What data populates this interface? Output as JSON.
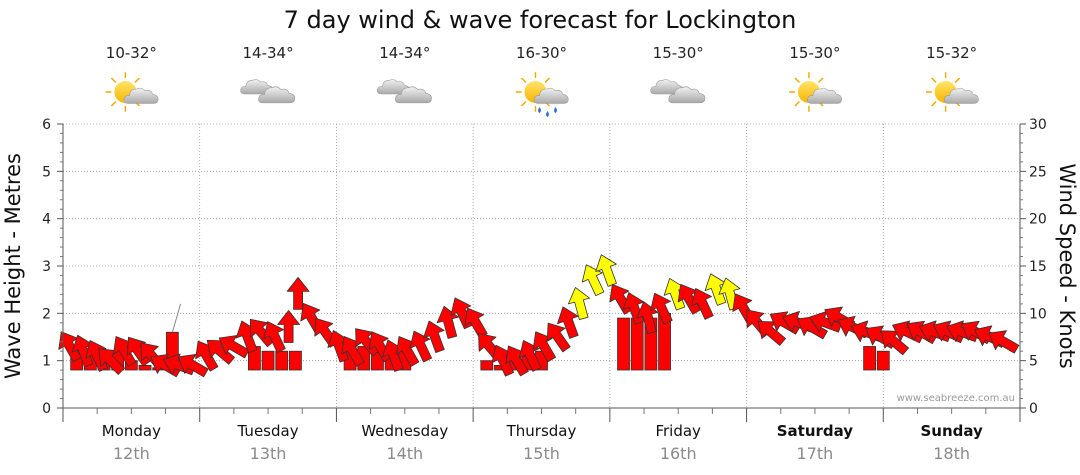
{
  "chart_data": {
    "type": "arrow-scatter",
    "title": "7 day wind & wave forecast for Lockington",
    "ylabel_left": "Wave Height - Metres",
    "ylabel_right": "Wind Speed - Knots",
    "ylim_left": [
      0,
      6
    ],
    "ylim_right": [
      0,
      30
    ],
    "yticks_left": [
      "0",
      "1",
      "2",
      "3",
      "4",
      "5",
      "6"
    ],
    "yticks_right": [
      "0",
      "5",
      "10",
      "15",
      "20",
      "25",
      "30"
    ],
    "watermark": "www.seabreeze.com.au",
    "colors": {
      "red": "#ff0000",
      "yellow": "#ffff00",
      "outline": "#333333",
      "grid": "#999999"
    },
    "days": [
      {
        "name": "Monday",
        "date": "12th",
        "temp": "10-32°",
        "icon": "partly-cloudy-icon",
        "bold": false
      },
      {
        "name": "Tuesday",
        "date": "13th",
        "temp": "14-34°",
        "icon": "cloudy-icon",
        "bold": false
      },
      {
        "name": "Wednesday",
        "date": "14th",
        "temp": "14-34°",
        "icon": "cloudy-icon",
        "bold": false
      },
      {
        "name": "Thursday",
        "date": "15th",
        "temp": "16-30°",
        "icon": "showers-icon",
        "bold": false
      },
      {
        "name": "Friday",
        "date": "16th",
        "temp": "15-30°",
        "icon": "cloudy-icon",
        "bold": false
      },
      {
        "name": "Saturday",
        "date": "17th",
        "temp": "15-30°",
        "icon": "partly-cloudy-icon",
        "bold": true
      },
      {
        "name": "Sunday",
        "date": "18th",
        "temp": "15-32°",
        "icon": "partly-cloudy-icon",
        "bold": true
      }
    ],
    "wind_series": {
      "name": "Wind (knots) & direction (arrow heading, degrees)",
      "points": [
        {
          "d": 0.05,
          "y": 6.5,
          "h": 330,
          "c": "red"
        },
        {
          "d": 0.15,
          "y": 6.0,
          "h": 340,
          "c": "red"
        },
        {
          "d": 0.25,
          "y": 5.5,
          "h": 335,
          "c": "red"
        },
        {
          "d": 0.35,
          "y": 5.0,
          "h": 315,
          "c": "red"
        },
        {
          "d": 0.45,
          "y": 6.0,
          "h": 330,
          "c": "red"
        },
        {
          "d": 0.55,
          "y": 6.0,
          "h": 325,
          "c": "red"
        },
        {
          "d": 0.65,
          "y": 5.5,
          "h": 320,
          "c": "red"
        },
        {
          "d": 0.75,
          "y": 4.5,
          "h": 300,
          "c": "red"
        },
        {
          "d": 0.85,
          "y": 4.5,
          "h": 290,
          "c": "red"
        },
        {
          "d": 0.95,
          "y": 4.5,
          "h": 300,
          "c": "red"
        },
        {
          "d": 1.05,
          "y": 5.5,
          "h": 330,
          "c": "red"
        },
        {
          "d": 1.15,
          "y": 6.0,
          "h": 310,
          "c": "red"
        },
        {
          "d": 1.25,
          "y": 6.5,
          "h": 300,
          "c": "red"
        },
        {
          "d": 1.35,
          "y": 7.5,
          "h": 340,
          "c": "red"
        },
        {
          "d": 1.45,
          "y": 8.0,
          "h": 320,
          "c": "red"
        },
        {
          "d": 1.55,
          "y": 7.5,
          "h": 335,
          "c": "red"
        },
        {
          "d": 1.65,
          "y": 8.5,
          "h": 0,
          "c": "red"
        },
        {
          "d": 1.72,
          "y": 12.0,
          "h": 0,
          "c": "red"
        },
        {
          "d": 1.82,
          "y": 9.5,
          "h": 330,
          "c": "red"
        },
        {
          "d": 1.92,
          "y": 8.0,
          "h": 325,
          "c": "red"
        },
        {
          "d": 2.02,
          "y": 6.5,
          "h": 340,
          "c": "red"
        },
        {
          "d": 2.12,
          "y": 6.0,
          "h": 330,
          "c": "red"
        },
        {
          "d": 2.22,
          "y": 7.0,
          "h": 320,
          "c": "red"
        },
        {
          "d": 2.32,
          "y": 6.5,
          "h": 330,
          "c": "red"
        },
        {
          "d": 2.42,
          "y": 5.5,
          "h": 340,
          "c": "red"
        },
        {
          "d": 2.52,
          "y": 6.0,
          "h": 330,
          "c": "red"
        },
        {
          "d": 2.62,
          "y": 6.5,
          "h": 335,
          "c": "red"
        },
        {
          "d": 2.72,
          "y": 7.5,
          "h": 340,
          "c": "red"
        },
        {
          "d": 2.82,
          "y": 9.0,
          "h": 345,
          "c": "red"
        },
        {
          "d": 2.92,
          "y": 10.0,
          "h": 335,
          "c": "red"
        },
        {
          "d": 3.02,
          "y": 9.0,
          "h": 330,
          "c": "red"
        },
        {
          "d": 3.12,
          "y": 6.5,
          "h": 320,
          "c": "red"
        },
        {
          "d": 3.22,
          "y": 5.0,
          "h": 335,
          "c": "red"
        },
        {
          "d": 3.32,
          "y": 5.0,
          "h": 330,
          "c": "red"
        },
        {
          "d": 3.42,
          "y": 5.5,
          "h": 335,
          "c": "red"
        },
        {
          "d": 3.52,
          "y": 6.5,
          "h": 330,
          "c": "red"
        },
        {
          "d": 3.62,
          "y": 7.5,
          "h": 325,
          "c": "red"
        },
        {
          "d": 3.7,
          "y": 9.0,
          "h": 340,
          "c": "red"
        },
        {
          "d": 3.78,
          "y": 11.0,
          "h": 345,
          "c": "yellow"
        },
        {
          "d": 3.88,
          "y": 13.5,
          "h": 335,
          "c": "yellow"
        },
        {
          "d": 3.98,
          "y": 14.5,
          "h": 340,
          "c": "yellow"
        },
        {
          "d": 4.08,
          "y": 11.5,
          "h": 330,
          "c": "red"
        },
        {
          "d": 4.18,
          "y": 10.5,
          "h": 340,
          "c": "red"
        },
        {
          "d": 4.28,
          "y": 9.5,
          "h": 345,
          "c": "red"
        },
        {
          "d": 4.38,
          "y": 10.5,
          "h": 335,
          "c": "red"
        },
        {
          "d": 4.48,
          "y": 12.0,
          "h": 340,
          "c": "yellow"
        },
        {
          "d": 4.58,
          "y": 11.5,
          "h": 330,
          "c": "red"
        },
        {
          "d": 4.68,
          "y": 11.0,
          "h": 335,
          "c": "red"
        },
        {
          "d": 4.78,
          "y": 12.5,
          "h": 340,
          "c": "yellow"
        },
        {
          "d": 4.88,
          "y": 12.0,
          "h": 345,
          "c": "yellow"
        },
        {
          "d": 4.98,
          "y": 10.5,
          "h": 330,
          "c": "red"
        },
        {
          "d": 5.08,
          "y": 9.0,
          "h": 320,
          "c": "red"
        },
        {
          "d": 5.18,
          "y": 8.0,
          "h": 310,
          "c": "red"
        },
        {
          "d": 5.28,
          "y": 9.0,
          "h": 300,
          "c": "red"
        },
        {
          "d": 5.38,
          "y": 9.0,
          "h": 290,
          "c": "red"
        },
        {
          "d": 5.48,
          "y": 8.5,
          "h": 300,
          "c": "red"
        },
        {
          "d": 5.58,
          "y": 9.0,
          "h": 290,
          "c": "red"
        },
        {
          "d": 5.68,
          "y": 9.5,
          "h": 300,
          "c": "red"
        },
        {
          "d": 5.78,
          "y": 8.5,
          "h": 295,
          "c": "red"
        },
        {
          "d": 5.88,
          "y": 8.0,
          "h": 290,
          "c": "red"
        },
        {
          "d": 5.98,
          "y": 7.5,
          "h": 300,
          "c": "red"
        },
        {
          "d": 6.08,
          "y": 7.0,
          "h": 310,
          "c": "red"
        },
        {
          "d": 6.18,
          "y": 8.0,
          "h": 295,
          "c": "red"
        },
        {
          "d": 6.28,
          "y": 8.0,
          "h": 300,
          "c": "red"
        },
        {
          "d": 6.38,
          "y": 8.0,
          "h": 290,
          "c": "red"
        },
        {
          "d": 6.48,
          "y": 8.0,
          "h": 295,
          "c": "red"
        },
        {
          "d": 6.58,
          "y": 8.0,
          "h": 290,
          "c": "red"
        },
        {
          "d": 6.68,
          "y": 8.0,
          "h": 300,
          "c": "red"
        },
        {
          "d": 6.78,
          "y": 7.5,
          "h": 295,
          "c": "red"
        },
        {
          "d": 6.88,
          "y": 7.0,
          "h": 300,
          "c": "red"
        }
      ]
    },
    "wave_series": {
      "name": "Wave height (m)",
      "points": [
        {
          "d": 0.1,
          "y": 1.3
        },
        {
          "d": 0.2,
          "y": 1.2
        },
        {
          "d": 0.3,
          "y": 1.1
        },
        {
          "d": 0.4,
          "y": 1.2
        },
        {
          "d": 0.5,
          "y": 1.0
        },
        {
          "d": 0.6,
          "y": 0.9
        },
        {
          "d": 0.7,
          "y": 0.85
        },
        {
          "d": 0.8,
          "y": 1.6
        },
        {
          "d": 1.4,
          "y": 1.3
        },
        {
          "d": 1.5,
          "y": 1.2
        },
        {
          "d": 1.6,
          "y": 1.2
        },
        {
          "d": 1.7,
          "y": 1.2
        },
        {
          "d": 2.1,
          "y": 1.4
        },
        {
          "d": 2.2,
          "y": 1.3
        },
        {
          "d": 2.3,
          "y": 1.2
        },
        {
          "d": 2.4,
          "y": 1.2
        },
        {
          "d": 2.5,
          "y": 1.3
        },
        {
          "d": 3.1,
          "y": 1.0
        },
        {
          "d": 3.2,
          "y": 0.9
        },
        {
          "d": 3.3,
          "y": 1.0
        },
        {
          "d": 3.4,
          "y": 1.1
        },
        {
          "d": 3.5,
          "y": 1.2
        },
        {
          "d": 4.1,
          "y": 1.9
        },
        {
          "d": 4.2,
          "y": 1.9
        },
        {
          "d": 4.3,
          "y": 1.9
        },
        {
          "d": 4.4,
          "y": 2.0
        },
        {
          "d": 5.9,
          "y": 1.3
        },
        {
          "d": 6.0,
          "y": 1.2
        }
      ]
    }
  }
}
